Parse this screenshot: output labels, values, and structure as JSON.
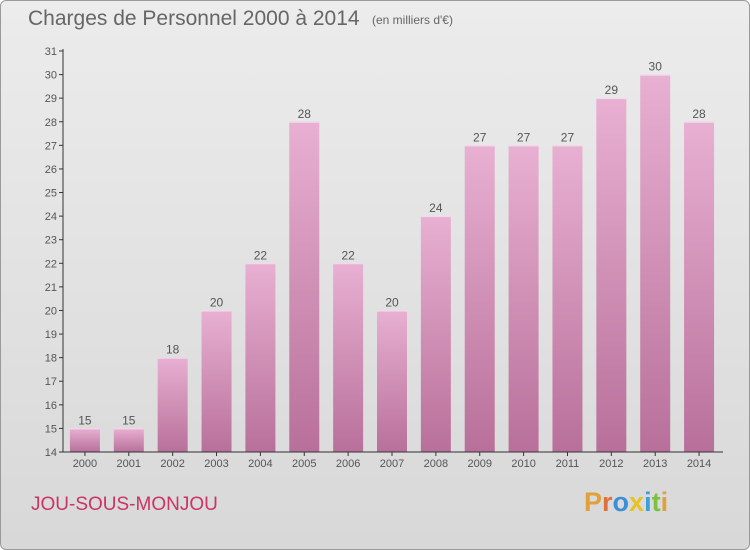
{
  "header": {
    "title": "Charges de Personnel 2000 à 2014",
    "subtitle": "(en milliers d'€)"
  },
  "footer": {
    "commune": "JOU-SOUS-MONJOU",
    "logo_text": "Proxiti"
  },
  "colors": {
    "bar_light": "#e8b0d2",
    "bar_dark": "#b8709a",
    "axis": "#333333",
    "text": "#555555",
    "commune": "#cc3366"
  },
  "chart_data": {
    "type": "bar",
    "title": "Charges de Personnel 2000 à 2014",
    "subtitle": "(en milliers d'€)",
    "categories": [
      "2000",
      "2001",
      "2002",
      "2003",
      "2004",
      "2005",
      "2006",
      "2007",
      "2008",
      "2009",
      "2010",
      "2011",
      "2012",
      "2013",
      "2014"
    ],
    "values": [
      15,
      15,
      18,
      20,
      22,
      28,
      22,
      20,
      24,
      27,
      27,
      27,
      29,
      30,
      28
    ],
    "ylim": [
      14,
      31
    ],
    "yticks": [
      14,
      15,
      16,
      17,
      18,
      19,
      20,
      21,
      22,
      23,
      24,
      25,
      26,
      27,
      28,
      29,
      30,
      31
    ],
    "data_labels": true,
    "grid": false,
    "legend": "none"
  }
}
